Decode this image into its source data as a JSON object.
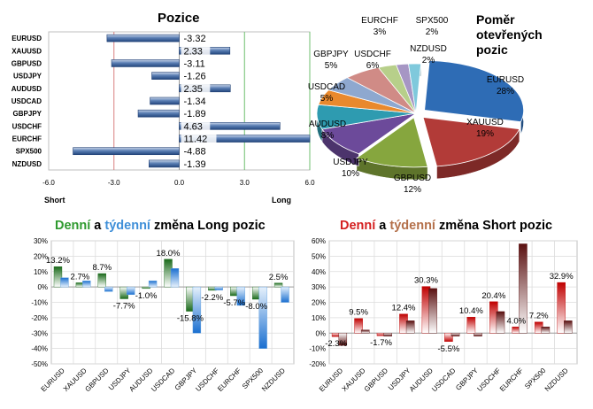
{
  "colors": {
    "long_green": "#2f8a2f",
    "weekly_blue": "#3f8fd8",
    "short_red": "#c00000",
    "weekly_brown": "#7a1f1f",
    "grid": "#d9d9d9"
  },
  "chart_data": [
    {
      "id": "pozice",
      "type": "bar",
      "orientation": "horizontal",
      "title": "Pozice",
      "categories": [
        "EURUSD",
        "XAUUSD",
        "GBPUSD",
        "USDJPY",
        "AUDUSD",
        "USDCAD",
        "GBPJPY",
        "USDCHF",
        "EURCHF",
        "SPX500",
        "NZDUSD"
      ],
      "values": [
        -3.32,
        2.33,
        -3.11,
        -1.26,
        2.35,
        -1.34,
        -1.89,
        4.63,
        11.42,
        -4.88,
        -1.39
      ],
      "value_labels": [
        "-3.32",
        "2.33",
        "-3.11",
        "-1.26",
        "2.35",
        "-1.34",
        "-1.89",
        "4.63",
        "11.42",
        "-4.88",
        "-1.39"
      ],
      "xlim": [
        -6.0,
        6.0
      ],
      "xticks": [
        "-6.0",
        "-3.0",
        "0.0",
        "3.0",
        "6.0"
      ],
      "xtick_values": [
        -6,
        -3,
        0,
        3,
        6
      ],
      "left_label": "Short",
      "right_label": "Long",
      "reference_lines": [
        -3,
        3
      ]
    },
    {
      "id": "pomer",
      "type": "pie",
      "title": "Poměr otevřených pozic",
      "title_lines": [
        "Poměr",
        "otevřených",
        "pozic"
      ],
      "slices": [
        {
          "label": "EURUSD",
          "value": 28,
          "pct": "28%",
          "color": "#2e6cb5"
        },
        {
          "label": "XAUUSD",
          "value": 19,
          "pct": "19%",
          "color": "#b23b38"
        },
        {
          "label": "GBPUSD",
          "value": 12,
          "pct": "12%",
          "color": "#86a63e"
        },
        {
          "label": "USDJPY",
          "value": 10,
          "pct": "10%",
          "color": "#6c4a9a"
        },
        {
          "label": "AUDUSD",
          "value": 8,
          "pct": "8%",
          "color": "#2e9bb0"
        },
        {
          "label": "USDCAD",
          "value": 5,
          "pct": "5%",
          "color": "#e9892d"
        },
        {
          "label": "GBPJPY",
          "value": 5,
          "pct": "5%",
          "color": "#8ea8cf"
        },
        {
          "label": "USDCHF",
          "value": 6,
          "pct": "6%",
          "color": "#d08b86"
        },
        {
          "label": "EURCHF",
          "value": 3,
          "pct": "3%",
          "color": "#b7cf8a"
        },
        {
          "label": "SPX500",
          "value": 2,
          "pct": "2%",
          "color": "#a696c4"
        },
        {
          "label": "NZDUSD",
          "value": 2,
          "pct": "2%",
          "color": "#7fc9dc"
        }
      ]
    },
    {
      "id": "long_change",
      "type": "bar",
      "title_parts": [
        "Denní",
        " a ",
        "týdenní",
        " změna Long pozic"
      ],
      "categories": [
        "EURUSD",
        "XAUUSD",
        "GBPUSD",
        "USDJPY",
        "AUDUSD",
        "USDCAD",
        "GBPJPY",
        "USDCHF",
        "EURCHF",
        "SPX500",
        "NZDUSD"
      ],
      "series": [
        {
          "name": "Denní",
          "values": [
            13.2,
            2.7,
            8.7,
            -7.7,
            -1.0,
            18.0,
            -15.8,
            -2.2,
            -5.7,
            -8.0,
            2.5
          ]
        },
        {
          "name": "Týdenní",
          "values": [
            6,
            4,
            -3,
            -5,
            4,
            12,
            -30,
            -2,
            -12,
            -40,
            -10
          ]
        }
      ],
      "data_labels": [
        "13.2%",
        "2.7%",
        "8.7%",
        "-7.7%",
        "-1.0%",
        "18.0%",
        "-15.8%",
        "-2.2%",
        "-5.7%",
        "-8.0%",
        "2.5%"
      ],
      "ylim": [
        -50,
        30
      ],
      "yticks": [
        "30%",
        "20%",
        "10%",
        "0%",
        "-10%",
        "-20%",
        "-30%",
        "-40%",
        "-50%"
      ],
      "ytick_values": [
        30,
        20,
        10,
        0,
        -10,
        -20,
        -30,
        -40,
        -50
      ]
    },
    {
      "id": "short_change",
      "type": "bar",
      "title_parts": [
        "Denní",
        " a ",
        "týdenní",
        " změna Short pozic"
      ],
      "categories": [
        "EURUSD",
        "XAUUSD",
        "GBPUSD",
        "USDJPY",
        "AUDUSD",
        "USDCAD",
        "GBPJPY",
        "USDCHF",
        "EURCHF",
        "SPX500",
        "NZDUSD"
      ],
      "series": [
        {
          "name": "Denní",
          "values": [
            -2.3,
            9.5,
            -1.7,
            12.4,
            30.3,
            -5.5,
            10.4,
            20.4,
            4.0,
            7.2,
            32.9
          ]
        },
        {
          "name": "Týdenní",
          "values": [
            -8,
            2,
            -2,
            8,
            29,
            -2,
            -2,
            14,
            58,
            4,
            8
          ]
        }
      ],
      "data_labels": [
        "-2.3%",
        "9.5%",
        "-1.7%",
        "12.4%",
        "30.3%",
        "-5.5%",
        "10.4%",
        "20.4%",
        "4.0%",
        "7.2%",
        "32.9%"
      ],
      "ylim": [
        -20,
        60
      ],
      "yticks": [
        "60%",
        "50%",
        "40%",
        "30%",
        "20%",
        "10%",
        "0%",
        "-10%",
        "-20%"
      ],
      "ytick_values": [
        60,
        50,
        40,
        30,
        20,
        10,
        0,
        -10,
        -20
      ]
    }
  ]
}
